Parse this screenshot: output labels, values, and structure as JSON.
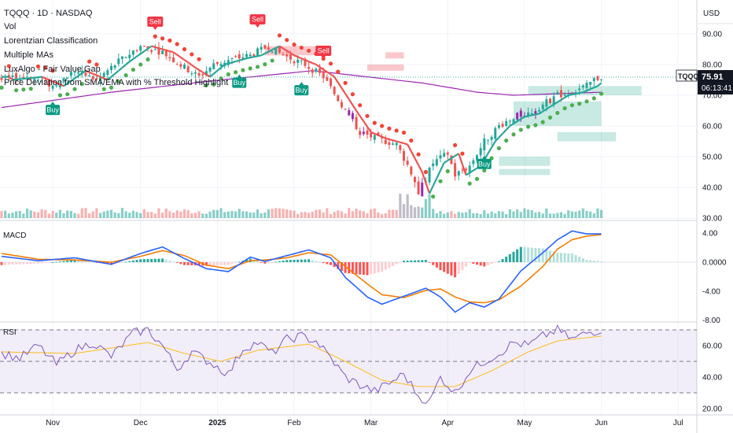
{
  "header": {
    "symbol_line": "TQQQ · 1D · NASDAQ",
    "currency": "USD",
    "indicators": [
      "Vol",
      "Lorentzian Classification",
      "Multiple MAs",
      "LuxAlgo - Fair Value Gap",
      "Price Deviation from SMA/EMA with % Threshold Highlight"
    ]
  },
  "price_tag": {
    "symbol": "TQQQ",
    "price": "75.91",
    "countdown": "06:13:41"
  },
  "panes": {
    "macd_title": "MACD",
    "rsi_title": "RSI"
  },
  "colors": {
    "up": "#26a69a",
    "down": "#ef5350",
    "purple": "#9c27b0",
    "ma_long": "#9c27b0",
    "macd": "#2962ff",
    "signal": "#f57c00",
    "rsi": "#7e57c2",
    "rsi_ma": "#fbc02d",
    "sell": "#f23645",
    "buy": "#089981"
  },
  "signals": {
    "sell_label": "Sell",
    "buy_label": "Buy"
  },
  "chart_data": [
    {
      "type": "candlestick",
      "ylim": [
        30,
        95
      ],
      "yticks": [
        "90.00",
        "80.00",
        "70.00",
        "60.00",
        "50.00",
        "40.00",
        "30.00"
      ],
      "xticks": [
        "Nov",
        "Dec",
        "2025",
        "Feb",
        "Mar",
        "Apr",
        "May",
        "Jun",
        "Jul"
      ],
      "close_path": [
        [
          0,
          75
        ],
        [
          8,
          76
        ],
        [
          14,
          73
        ],
        [
          20,
          78
        ],
        [
          26,
          75
        ],
        [
          32,
          81
        ],
        [
          38,
          86
        ],
        [
          44,
          84
        ],
        [
          50,
          79
        ],
        [
          54,
          76
        ],
        [
          58,
          80
        ],
        [
          64,
          82
        ],
        [
          68,
          83
        ],
        [
          73,
          86
        ],
        [
          77,
          83
        ],
        [
          83,
          80
        ],
        [
          88,
          76
        ],
        [
          94,
          65
        ],
        [
          98,
          58
        ],
        [
          102,
          56
        ],
        [
          108,
          54
        ],
        [
          112,
          45
        ],
        [
          114,
          38
        ],
        [
          118,
          48
        ],
        [
          122,
          51
        ],
        [
          124,
          44
        ],
        [
          128,
          47
        ],
        [
          132,
          55
        ],
        [
          136,
          60
        ],
        [
          140,
          63
        ],
        [
          144,
          64
        ],
        [
          148,
          67
        ],
        [
          152,
          70
        ],
        [
          156,
          71
        ],
        [
          160,
          73
        ],
        [
          162,
          75
        ],
        [
          164,
          76
        ]
      ],
      "ma_long": [
        [
          0,
          66
        ],
        [
          30,
          71
        ],
        [
          60,
          75
        ],
        [
          85,
          78
        ],
        [
          100,
          76
        ],
        [
          115,
          74
        ],
        [
          130,
          71
        ],
        [
          140,
          70
        ],
        [
          164,
          71
        ]
      ],
      "fvg_boxes": [
        {
          "i0": 72,
          "i1": 89,
          "y0": 83,
          "y1": 86,
          "color": "red"
        },
        {
          "i0": 100,
          "i1": 110,
          "y0": 78,
          "y1": 80,
          "color": "red"
        },
        {
          "i0": 105,
          "i1": 110,
          "y0": 82,
          "y1": 84,
          "color": "red"
        },
        {
          "i0": 140,
          "i1": 164,
          "y0": 60,
          "y1": 68,
          "color": "green"
        },
        {
          "i0": 144,
          "i1": 175,
          "y0": 70,
          "y1": 73,
          "color": "green"
        },
        {
          "i0": 136,
          "i1": 150,
          "y0": 47,
          "y1": 50,
          "color": "green"
        },
        {
          "i0": 136,
          "i1": 150,
          "y0": 44,
          "y1": 46,
          "color": "green"
        },
        {
          "i0": 152,
          "i1": 168,
          "y0": 55,
          "y1": 58,
          "color": "green"
        }
      ],
      "sell_signals": [
        42,
        70,
        88
      ],
      "buy_signals": [
        14,
        65,
        82,
        132
      ]
    },
    {
      "type": "line",
      "title": "MACD",
      "ylim": [
        -8,
        4.8
      ],
      "yticks": [
        "4.00",
        "0.0000",
        "-4.00",
        "-8.00"
      ],
      "macd_path": [
        [
          0,
          0.8
        ],
        [
          10,
          0.2
        ],
        [
          20,
          0.6
        ],
        [
          30,
          -0.3
        ],
        [
          38,
          1.2
        ],
        [
          44,
          2.1
        ],
        [
          50,
          0.5
        ],
        [
          56,
          -0.9
        ],
        [
          62,
          -1.3
        ],
        [
          68,
          0.7
        ],
        [
          72,
          0.1
        ],
        [
          78,
          0.9
        ],
        [
          84,
          1.7
        ],
        [
          90,
          0.6
        ],
        [
          94,
          -2.1
        ],
        [
          100,
          -4.8
        ],
        [
          104,
          -5.8
        ],
        [
          110,
          -4.7
        ],
        [
          116,
          -3.6
        ],
        [
          120,
          -4.8
        ],
        [
          124,
          -6.9
        ],
        [
          128,
          -5.6
        ],
        [
          132,
          -6.2
        ],
        [
          136,
          -5.1
        ],
        [
          142,
          -1.2
        ],
        [
          148,
          1.3
        ],
        [
          152,
          3.1
        ],
        [
          156,
          4.3
        ],
        [
          160,
          3.9
        ],
        [
          164,
          3.9
        ]
      ],
      "signal_path": [
        [
          0,
          1.2
        ],
        [
          10,
          0.4
        ],
        [
          20,
          0.3
        ],
        [
          30,
          0.0
        ],
        [
          38,
          0.8
        ],
        [
          44,
          1.6
        ],
        [
          50,
          0.9
        ],
        [
          56,
          -0.4
        ],
        [
          62,
          -0.9
        ],
        [
          68,
          0.2
        ],
        [
          72,
          0.3
        ],
        [
          78,
          0.6
        ],
        [
          84,
          1.3
        ],
        [
          90,
          1.0
        ],
        [
          94,
          -0.6
        ],
        [
          100,
          -3.0
        ],
        [
          104,
          -4.5
        ],
        [
          110,
          -4.9
        ],
        [
          116,
          -3.9
        ],
        [
          120,
          -3.7
        ],
        [
          124,
          -4.8
        ],
        [
          128,
          -5.5
        ],
        [
          132,
          -5.6
        ],
        [
          136,
          -5.2
        ],
        [
          142,
          -3.3
        ],
        [
          148,
          -0.6
        ],
        [
          152,
          1.8
        ],
        [
          156,
          3.1
        ],
        [
          160,
          3.6
        ],
        [
          164,
          3.8
        ]
      ]
    },
    {
      "type": "line",
      "title": "RSI",
      "ylim": [
        20,
        75
      ],
      "yticks": [
        "60.00",
        "40.00",
        "20.00"
      ],
      "bands": [
        70,
        50,
        30
      ],
      "rsi_path": [
        [
          0,
          55
        ],
        [
          5,
          52
        ],
        [
          10,
          60
        ],
        [
          15,
          48
        ],
        [
          20,
          57
        ],
        [
          25,
          62
        ],
        [
          30,
          53
        ],
        [
          36,
          68
        ],
        [
          40,
          70
        ],
        [
          44,
          60
        ],
        [
          48,
          45
        ],
        [
          52,
          56
        ],
        [
          58,
          48
        ],
        [
          62,
          42
        ],
        [
          66,
          58
        ],
        [
          70,
          62
        ],
        [
          74,
          55
        ],
        [
          78,
          64
        ],
        [
          82,
          66
        ],
        [
          86,
          63
        ],
        [
          90,
          52
        ],
        [
          94,
          40
        ],
        [
          98,
          35
        ],
        [
          102,
          31
        ],
        [
          106,
          36
        ],
        [
          110,
          42
        ],
        [
          114,
          28
        ],
        [
          117,
          24
        ],
        [
          120,
          40
        ],
        [
          124,
          30
        ],
        [
          128,
          44
        ],
        [
          132,
          50
        ],
        [
          136,
          55
        ],
        [
          140,
          62
        ],
        [
          144,
          60
        ],
        [
          148,
          66
        ],
        [
          152,
          70
        ],
        [
          156,
          64
        ],
        [
          160,
          68
        ],
        [
          164,
          70
        ]
      ],
      "rsi_ma_path": [
        [
          0,
          56
        ],
        [
          20,
          55
        ],
        [
          40,
          62
        ],
        [
          50,
          55
        ],
        [
          60,
          50
        ],
        [
          70,
          57
        ],
        [
          84,
          61
        ],
        [
          94,
          50
        ],
        [
          104,
          38
        ],
        [
          114,
          34
        ],
        [
          124,
          34
        ],
        [
          134,
          44
        ],
        [
          144,
          56
        ],
        [
          152,
          63
        ],
        [
          164,
          66
        ]
      ]
    }
  ]
}
